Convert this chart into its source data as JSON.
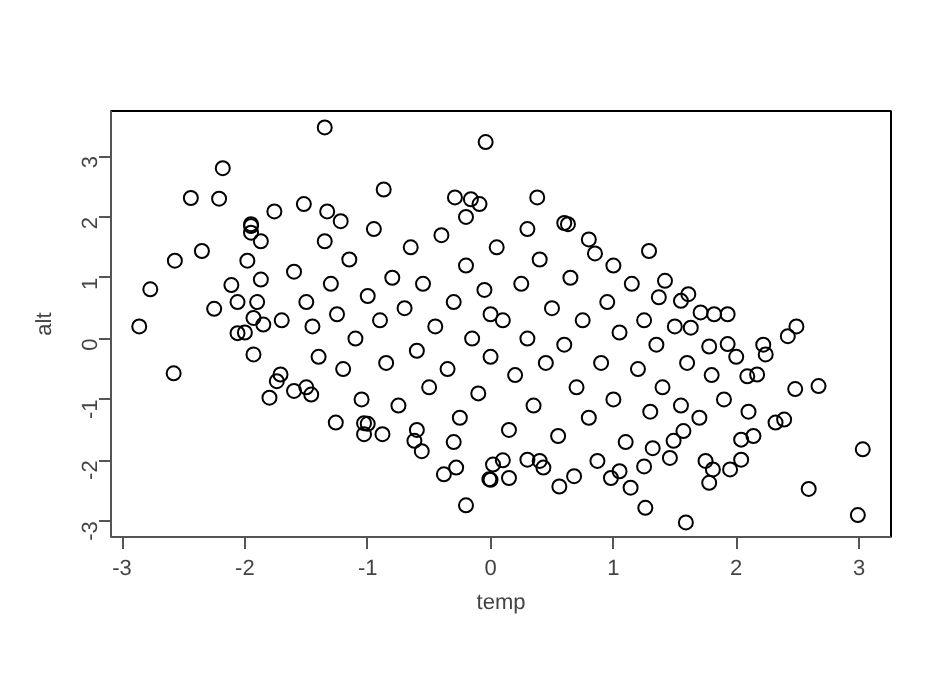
{
  "chart_data": {
    "type": "scatter",
    "xlabel": "temp",
    "ylabel": "alt",
    "color": "#000000",
    "marker": "circle",
    "grid": false,
    "xlim": [
      -3.09,
      3.26
    ],
    "ylim": [
      -3.26,
      3.74
    ],
    "xticks": [
      -3,
      -2,
      -1,
      0,
      1,
      2,
      3
    ],
    "yticks": [
      -3,
      -2,
      -1,
      0,
      1,
      2,
      3
    ],
    "x": [
      -2.86,
      -2.77,
      -2.57,
      -2.58,
      -2.44,
      -2.35,
      -2.18,
      -2.21,
      -2.25,
      -2.11,
      -2.06,
      -2.06,
      -1.93,
      -1.95,
      -1.95,
      -1.95,
      -1.87,
      -1.87,
      -1.98,
      -1.93,
      -1.85,
      -1.76,
      -1.8,
      -1.74,
      -1.71,
      -1.6,
      -1.52,
      -1.35,
      -1.5,
      -1.46,
      -1.26,
      -1.33,
      -1.22,
      -0.87,
      -1.03,
      -1.03,
      -0.88,
      -0.62,
      -0.56,
      -0.38,
      -0.28,
      -0.2,
      -0.29,
      -0.16,
      -0.09,
      -0.04,
      0.02,
      -0.01,
      0.38,
      0.63,
      0.8,
      1.29,
      1.42,
      1.37,
      1.55,
      1.61,
      1.71,
      1.82,
      1.93,
      1.63,
      1.78,
      1.93,
      2.09,
      2.22,
      2.24,
      2.17,
      2.42,
      2.49,
      2.48,
      2.67,
      2.32,
      2.39,
      2.04,
      1.95,
      1.78,
      1.81,
      1.75,
      1.59,
      1.26,
      1.14,
      1.05,
      0.98,
      0.87,
      0.68,
      0.56,
      0.43,
      0.4,
      0.3,
      0.15,
      0.0,
      2.59,
      3.03,
      2.99,
      2.14,
      2.04,
      1.46,
      1.49,
      1.57,
      1.32,
      1.25,
      -1.6,
      -1.5,
      -1.45,
      -1.4,
      -1.35,
      -1.3,
      -1.25,
      -1.2,
      -1.15,
      -1.1,
      -1.05,
      -1.0,
      -0.95,
      -0.9,
      -0.85,
      -0.8,
      -0.75,
      -0.7,
      -0.65,
      -0.6,
      -0.55,
      -0.5,
      -0.45,
      -0.4,
      -0.35,
      -0.3,
      -0.25,
      -0.2,
      -0.15,
      -0.1,
      -0.05,
      0.0,
      0.05,
      0.1,
      0.15,
      0.2,
      0.25,
      0.3,
      0.35,
      0.4,
      0.45,
      0.5,
      0.55,
      0.6,
      0.65,
      0.7,
      0.75,
      0.8,
      0.85,
      0.9,
      0.95,
      1.0,
      1.05,
      1.1,
      1.15,
      1.2,
      1.25,
      1.3,
      1.35,
      1.4,
      1.5,
      1.55,
      1.6,
      1.7,
      1.8,
      1.9,
      2.0,
      2.1,
      -0.3,
      -0.6,
      0.3,
      0.6,
      -0.2,
      0.1,
      -1.7,
      -1.9,
      -2.0,
      1.0,
      -1.0,
      0.0
    ],
    "values": [
      0.2,
      0.81,
      1.28,
      -0.57,
      2.31,
      1.44,
      2.8,
      2.3,
      0.49,
      0.88,
      0.6,
      0.09,
      -0.26,
      1.88,
      1.85,
      1.74,
      1.6,
      0.97,
      1.28,
      0.34,
      0.23,
      2.09,
      -0.97,
      -0.7,
      -0.59,
      -0.86,
      2.21,
      3.47,
      -0.8,
      -0.92,
      -1.38,
      2.09,
      1.93,
      2.45,
      -1.57,
      -1.39,
      -1.57,
      -1.68,
      -1.85,
      -2.23,
      -2.12,
      -2.74,
      2.32,
      2.29,
      2.21,
      3.23,
      -2.07,
      -2.31,
      2.32,
      1.88,
      1.63,
      1.44,
      0.95,
      0.68,
      0.62,
      0.73,
      0.43,
      0.4,
      0.4,
      0.18,
      -0.13,
      -0.09,
      -0.62,
      -0.1,
      -0.26,
      -0.59,
      0.04,
      0.2,
      -0.83,
      -0.78,
      -1.38,
      -1.33,
      -1.99,
      -2.15,
      -2.37,
      -2.15,
      -2.01,
      -3.02,
      -2.78,
      -2.45,
      -2.18,
      -2.29,
      -2.01,
      -2.26,
      -2.43,
      -2.12,
      -2.01,
      -1.99,
      -2.29,
      -2.32,
      -2.47,
      -1.82,
      -2.9,
      -1.6,
      -1.66,
      -1.96,
      -1.68,
      -1.52,
      -1.8,
      -2.1,
      1.1,
      0.6,
      0.2,
      -0.3,
      1.6,
      0.9,
      0.4,
      -0.5,
      1.3,
      0.0,
      -1.0,
      0.7,
      1.8,
      0.3,
      -0.4,
      1.0,
      -1.1,
      0.5,
      1.5,
      -0.2,
      0.9,
      -0.8,
      0.2,
      1.7,
      -0.5,
      0.6,
      -1.3,
      1.2,
      0.0,
      -0.9,
      0.8,
      -0.3,
      1.5,
      0.3,
      -1.5,
      -0.6,
      0.9,
      0.0,
      -1.1,
      1.3,
      -0.4,
      0.5,
      -1.6,
      -0.1,
      1.0,
      -0.8,
      0.3,
      -1.3,
      1.4,
      -0.4,
      0.6,
      -1.0,
      0.1,
      -1.7,
      0.9,
      -0.5,
      0.3,
      -1.2,
      -0.1,
      -0.8,
      0.2,
      -1.1,
      -0.4,
      -1.3,
      -0.6,
      -1.0,
      -0.3,
      -1.2,
      -1.7,
      -1.5,
      1.8,
      1.9,
      2.0,
      -2.0,
      0.3,
      0.6,
      0.1,
      1.2,
      -1.4,
      0.4
    ]
  }
}
